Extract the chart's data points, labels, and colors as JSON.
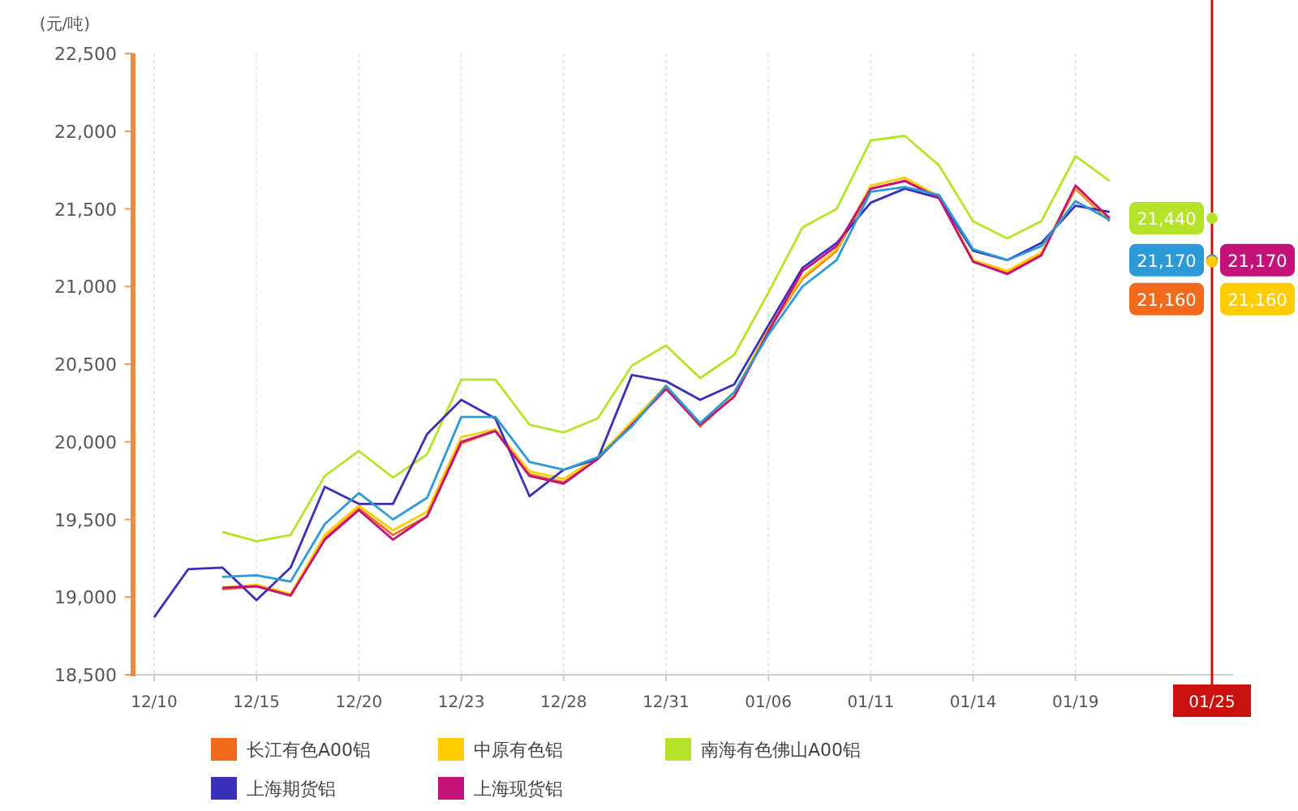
{
  "chart_data": {
    "type": "line",
    "ylabel": "(元/吨)",
    "categories": [
      "12/10",
      null,
      null,
      "12/15",
      null,
      null,
      "12/20",
      null,
      null,
      "12/23",
      null,
      null,
      "12/28",
      null,
      null,
      "12/31",
      null,
      null,
      "01/06",
      null,
      null,
      "01/11",
      null,
      null,
      "01/14",
      null,
      null,
      "01/19",
      null,
      null,
      null,
      "01/25"
    ],
    "ylim": [
      18500,
      22500
    ],
    "yticks": [
      {
        "value": 18500,
        "label": "18,500"
      },
      {
        "value": 19000,
        "label": "19,000"
      },
      {
        "value": 19500,
        "label": "19,500"
      },
      {
        "value": 20000,
        "label": "20,000"
      },
      {
        "value": 20500,
        "label": "20,500"
      },
      {
        "value": 21000,
        "label": "21,000"
      },
      {
        "value": 21500,
        "label": "21,500"
      },
      {
        "value": 22000,
        "label": "22,000"
      },
      {
        "value": 22500,
        "label": "22,500"
      }
    ],
    "grid": "x",
    "legend": "bottom",
    "ref_lines": [
      {
        "axis": "x",
        "value": "01/25",
        "color": "#cc1111"
      }
    ],
    "series": [
      {
        "name": "长江有色A00铝",
        "color": "#f26b1d",
        "values": [
          null,
          null,
          19050,
          19070,
          19010,
          19380,
          19570,
          19400,
          19520,
          19990,
          20070,
          19790,
          19740,
          19890,
          20120,
          20350,
          20100,
          20300,
          20720,
          21050,
          21230,
          21630,
          21680,
          21570,
          21160,
          21090,
          21210,
          21630,
          21420,
          null,
          null,
          21160
        ],
        "value_labels": [
          null,
          null,
          null,
          null,
          null,
          null,
          null,
          null,
          null,
          null,
          null,
          null,
          null,
          null,
          null,
          null,
          null,
          null,
          null,
          null,
          null,
          null,
          null,
          null,
          null,
          null,
          null,
          null,
          null,
          null,
          null,
          "21,160"
        ]
      },
      {
        "name": "中原有色铝",
        "color": "#ffcc00",
        "values": [
          null,
          null,
          19060,
          19080,
          19020,
          19400,
          19590,
          19430,
          19550,
          20030,
          20080,
          19810,
          19760,
          19900,
          20130,
          20360,
          20120,
          20310,
          20730,
          21060,
          21240,
          21650,
          21700,
          21580,
          21170,
          21100,
          21220,
          21640,
          21430,
          null,
          null,
          21160
        ],
        "value_labels": [
          null,
          null,
          null,
          null,
          null,
          null,
          null,
          null,
          null,
          null,
          null,
          null,
          null,
          null,
          null,
          null,
          null,
          null,
          null,
          null,
          null,
          null,
          null,
          null,
          null,
          null,
          null,
          null,
          null,
          null,
          null,
          "21,160"
        ]
      },
      {
        "name": "南海有色佛山A00铝",
        "color": "#b5e32a",
        "values": [
          null,
          null,
          19420,
          19360,
          19400,
          19780,
          19940,
          19770,
          19920,
          20400,
          20400,
          20110,
          20060,
          20150,
          20490,
          20620,
          20410,
          20560,
          20960,
          21380,
          21500,
          21940,
          21970,
          21780,
          21420,
          21310,
          21420,
          21840,
          21680,
          null,
          null,
          21440
        ],
        "value_labels": [
          null,
          null,
          null,
          null,
          null,
          null,
          null,
          null,
          null,
          null,
          null,
          null,
          null,
          null,
          null,
          null,
          null,
          null,
          null,
          null,
          null,
          null,
          null,
          null,
          null,
          null,
          null,
          null,
          null,
          null,
          null,
          "21,440"
        ]
      },
      {
        "name": "上海期货铝",
        "color": "#3a2fb8",
        "values": [
          18870,
          19180,
          19190,
          18980,
          19190,
          19710,
          19600,
          19600,
          20050,
          20270,
          20150,
          19650,
          19820,
          19890,
          20430,
          20390,
          20270,
          20370,
          20750,
          21120,
          21280,
          21540,
          21630,
          21570,
          21230,
          21170,
          21280,
          21520,
          21480,
          null,
          null,
          null
        ]
      },
      {
        "name": "上海现货铝",
        "color": "#c4127a",
        "values": [
          null,
          null,
          19060,
          19070,
          19010,
          19370,
          19560,
          19370,
          19520,
          20000,
          20070,
          19780,
          19730,
          19890,
          20110,
          20340,
          20110,
          20290,
          20710,
          21100,
          21260,
          21630,
          21680,
          21570,
          21160,
          21080,
          21200,
          21650,
          21440,
          null,
          null,
          21170
        ],
        "value_labels": [
          null,
          null,
          null,
          null,
          null,
          null,
          null,
          null,
          null,
          null,
          null,
          null,
          null,
          null,
          null,
          null,
          null,
          null,
          null,
          null,
          null,
          null,
          null,
          null,
          null,
          null,
          null,
          null,
          null,
          null,
          null,
          "21,170"
        ]
      },
      {
        "color": "#2b9ad6",
        "values": [
          null,
          null,
          19130,
          19140,
          19100,
          19470,
          19670,
          19500,
          19640,
          20160,
          20160,
          19870,
          19820,
          19900,
          20100,
          20360,
          20120,
          20320,
          20690,
          21000,
          21170,
          21610,
          21640,
          21590,
          21240,
          21170,
          21260,
          21550,
          21430,
          null,
          null,
          21170
        ],
        "value_labels": [
          null,
          null,
          null,
          null,
          null,
          null,
          null,
          null,
          null,
          null,
          null,
          null,
          null,
          null,
          null,
          null,
          null,
          null,
          null,
          null,
          null,
          null,
          null,
          null,
          null,
          null,
          null,
          null,
          null,
          null,
          null,
          "21,170"
        ]
      }
    ]
  }
}
